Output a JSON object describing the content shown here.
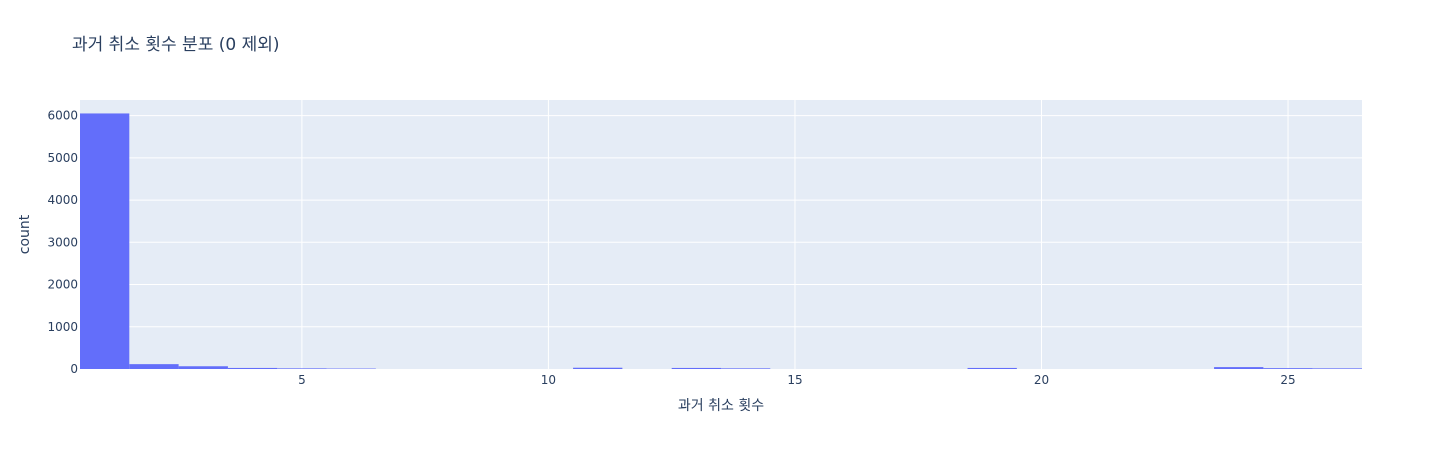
{
  "chart_data": {
    "type": "bar",
    "title": "과거 취소 횟수 분포 (0 제외)",
    "xlabel": "과거 취소 횟수",
    "ylabel": "count",
    "x": [
      1,
      2,
      3,
      4,
      5,
      6,
      11,
      13,
      14,
      19,
      24,
      25,
      26
    ],
    "values": [
      6051,
      115,
      65,
      25,
      15,
      10,
      30,
      25,
      15,
      25,
      45,
      20,
      15
    ],
    "xlim": [
      0.5,
      26.5
    ],
    "ylim": [
      0,
      6369.5
    ],
    "x_ticks": [
      "5",
      "10",
      "15",
      "20",
      "25"
    ],
    "y_ticks": [
      "0",
      "1000",
      "2000",
      "3000",
      "4000",
      "5000",
      "6000"
    ],
    "grid": true,
    "colors": {
      "bar": "#636efa",
      "plot_bg": "#e5ecf6",
      "grid": "#ffffff",
      "text": "#2a3f5f"
    }
  }
}
